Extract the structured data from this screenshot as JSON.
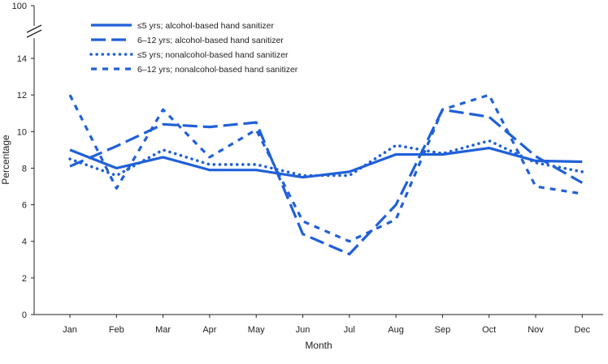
{
  "chart_data": {
    "type": "line",
    "title": "",
    "xlabel": "Month",
    "ylabel": "Percentage",
    "categories": [
      "Jan",
      "Feb",
      "Mar",
      "Apr",
      "May",
      "Jun",
      "Jul",
      "Aug",
      "Sep",
      "Oct",
      "Nov",
      "Dec"
    ],
    "y_ticks": [
      "0",
      "2",
      "4",
      "6",
      "8",
      "10",
      "12",
      "14",
      "100"
    ],
    "ylim": [
      0,
      14
    ],
    "y_break_top_label": "100",
    "axis_break": true,
    "grid": false,
    "legend_position": "top-left",
    "line_color": "#2060D8",
    "series": [
      {
        "name": "≤5 yrs;  alcohol-based hand sanitizer",
        "style": "solid",
        "values": [
          9.0,
          8.0,
          8.6,
          7.9,
          7.9,
          7.5,
          7.8,
          8.75,
          8.75,
          9.1,
          8.4,
          8.35
        ]
      },
      {
        "name": "6–12 yrs; alcohol-based hand sanitizer",
        "style": "long-dash",
        "values": [
          8.1,
          9.2,
          10.4,
          10.25,
          10.5,
          4.4,
          3.3,
          6.0,
          11.2,
          10.8,
          8.65,
          7.2
        ]
      },
      {
        "name": "≤5 yrs;  nonalcohol-based hand sanitizer",
        "style": "dotted",
        "values": [
          8.5,
          7.6,
          9.0,
          8.2,
          8.2,
          7.6,
          7.6,
          9.25,
          8.8,
          9.5,
          8.3,
          7.8
        ]
      },
      {
        "name": "6–12 yrs; nonalcohol-based hand sanitizer",
        "style": "short-dash",
        "values": [
          12.0,
          6.9,
          11.2,
          8.6,
          10.1,
          5.1,
          4.0,
          5.2,
          11.2,
          12.0,
          7.0,
          6.6
        ]
      }
    ]
  }
}
